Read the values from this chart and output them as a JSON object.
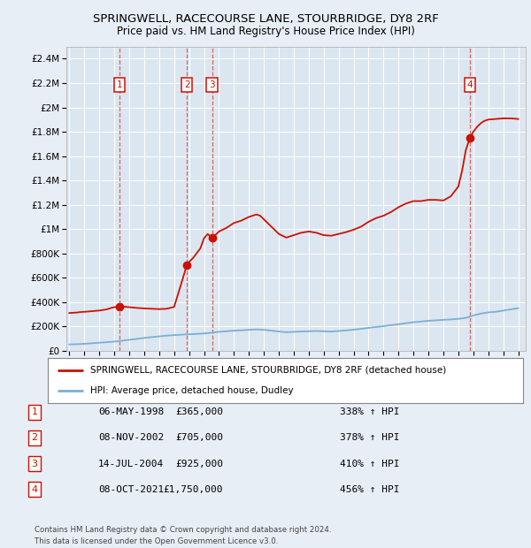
{
  "title": "SPRINGWELL, RACECOURSE LANE, STOURBRIDGE, DY8 2RF",
  "subtitle": "Price paid vs. HM Land Registry's House Price Index (HPI)",
  "background_color": "#e8eef5",
  "plot_bg_color": "#dce6f0",
  "grid_color": "#ffffff",
  "ylim": [
    0,
    2500000
  ],
  "yticks": [
    0,
    200000,
    400000,
    600000,
    800000,
    1000000,
    1200000,
    1400000,
    1600000,
    1800000,
    2000000,
    2200000,
    2400000
  ],
  "ytick_labels": [
    "£0",
    "£200K",
    "£400K",
    "£600K",
    "£800K",
    "£1M",
    "£1.2M",
    "£1.4M",
    "£1.6M",
    "£1.8M",
    "£2M",
    "£2.2M",
    "£2.4M"
  ],
  "xlim_start": 1994.8,
  "xlim_end": 2025.5,
  "xtick_years": [
    1995,
    1996,
    1997,
    1998,
    1999,
    2000,
    2001,
    2002,
    2003,
    2004,
    2005,
    2006,
    2007,
    2008,
    2009,
    2010,
    2011,
    2012,
    2013,
    2014,
    2015,
    2016,
    2017,
    2018,
    2019,
    2020,
    2021,
    2022,
    2023,
    2024,
    2025
  ],
  "hpi_color": "#7bafd4",
  "sale_color": "#cc1100",
  "sale_points": [
    {
      "label": 1,
      "year": 1998.35,
      "price": 365000
    },
    {
      "label": 2,
      "year": 2002.85,
      "price": 705000
    },
    {
      "label": 3,
      "year": 2004.54,
      "price": 925000
    },
    {
      "label": 4,
      "year": 2021.77,
      "price": 1750000
    }
  ],
  "vline_years": [
    1998.35,
    2002.85,
    2004.54,
    2021.77
  ],
  "hpi_line_x": [
    1995,
    1995.5,
    1996,
    1996.5,
    1997,
    1997.5,
    1998,
    1998.5,
    1999,
    1999.5,
    2000,
    2000.5,
    2001,
    2001.5,
    2002,
    2002.5,
    2003,
    2003.5,
    2004,
    2004.5,
    2005,
    2005.5,
    2006,
    2006.5,
    2007,
    2007.5,
    2008,
    2008.5,
    2009,
    2009.5,
    2010,
    2010.5,
    2011,
    2011.5,
    2012,
    2012.5,
    2013,
    2013.5,
    2014,
    2014.5,
    2015,
    2015.5,
    2016,
    2016.5,
    2017,
    2017.5,
    2018,
    2018.5,
    2019,
    2019.5,
    2020,
    2020.5,
    2021,
    2021.5,
    2022,
    2022.5,
    2023,
    2023.5,
    2024,
    2024.5,
    2025
  ],
  "hpi_line_y": [
    52000,
    54000,
    57000,
    61000,
    66000,
    70000,
    75000,
    82000,
    90000,
    97000,
    105000,
    112000,
    118000,
    124000,
    128000,
    132000,
    135000,
    138000,
    142000,
    148000,
    155000,
    160000,
    165000,
    168000,
    172000,
    175000,
    172000,
    165000,
    158000,
    152000,
    155000,
    158000,
    160000,
    162000,
    160000,
    158000,
    162000,
    167000,
    173000,
    180000,
    188000,
    195000,
    202000,
    210000,
    218000,
    226000,
    234000,
    240000,
    246000,
    250000,
    254000,
    257000,
    262000,
    270000,
    290000,
    305000,
    315000,
    320000,
    330000,
    340000,
    350000
  ],
  "sale_line_x": [
    1995.0,
    1995.25,
    1995.5,
    1995.75,
    1996.0,
    1996.25,
    1996.5,
    1996.75,
    1997.0,
    1997.25,
    1997.5,
    1997.75,
    1998.0,
    1998.35,
    1999.0,
    1999.5,
    2000.0,
    2000.5,
    2001.0,
    2001.5,
    2002.0,
    2002.5,
    2002.85,
    2003.0,
    2003.25,
    2003.5,
    2003.75,
    2004.0,
    2004.25,
    2004.54,
    2005.0,
    2005.5,
    2006.0,
    2006.5,
    2007.0,
    2007.25,
    2007.5,
    2007.75,
    2008.0,
    2008.5,
    2009.0,
    2009.5,
    2010.0,
    2010.5,
    2011.0,
    2011.5,
    2012.0,
    2012.5,
    2013.0,
    2013.5,
    2014.0,
    2014.5,
    2015.0,
    2015.5,
    2016.0,
    2016.5,
    2017.0,
    2017.5,
    2018.0,
    2018.5,
    2019.0,
    2019.5,
    2020.0,
    2020.5,
    2021.0,
    2021.25,
    2021.5,
    2021.77,
    2022.0,
    2022.25,
    2022.5,
    2022.75,
    2023.0,
    2023.5,
    2024.0,
    2024.5,
    2025.0
  ],
  "sale_line_y": [
    310000,
    312000,
    314000,
    318000,
    320000,
    322000,
    325000,
    328000,
    330000,
    335000,
    340000,
    350000,
    358000,
    365000,
    358000,
    352000,
    348000,
    345000,
    342000,
    345000,
    360000,
    560000,
    705000,
    730000,
    760000,
    800000,
    840000,
    925000,
    960000,
    925000,
    980000,
    1010000,
    1050000,
    1070000,
    1100000,
    1110000,
    1120000,
    1110000,
    1080000,
    1020000,
    960000,
    930000,
    950000,
    970000,
    980000,
    970000,
    950000,
    945000,
    960000,
    975000,
    995000,
    1020000,
    1060000,
    1090000,
    1110000,
    1140000,
    1180000,
    1210000,
    1230000,
    1230000,
    1240000,
    1240000,
    1235000,
    1270000,
    1350000,
    1480000,
    1650000,
    1750000,
    1800000,
    1840000,
    1870000,
    1890000,
    1900000,
    1905000,
    1910000,
    1910000,
    1905000
  ],
  "legend_label_sale": "SPRINGWELL, RACECOURSE LANE, STOURBRIDGE, DY8 2RF (detached house)",
  "legend_label_hpi": "HPI: Average price, detached house, Dudley",
  "table_data": [
    {
      "num": 1,
      "date": "06-MAY-1998",
      "price": "£365,000",
      "hpi": "338% ↑ HPI"
    },
    {
      "num": 2,
      "date": "08-NOV-2002",
      "price": "£705,000",
      "hpi": "378% ↑ HPI"
    },
    {
      "num": 3,
      "date": "14-JUL-2004",
      "price": "£925,000",
      "hpi": "410% ↑ HPI"
    },
    {
      "num": 4,
      "date": "08-OCT-2021",
      "price": "£1,750,000",
      "hpi": "456% ↑ HPI"
    }
  ],
  "footer": "Contains HM Land Registry data © Crown copyright and database right 2024.\nThis data is licensed under the Open Government Licence v3.0."
}
